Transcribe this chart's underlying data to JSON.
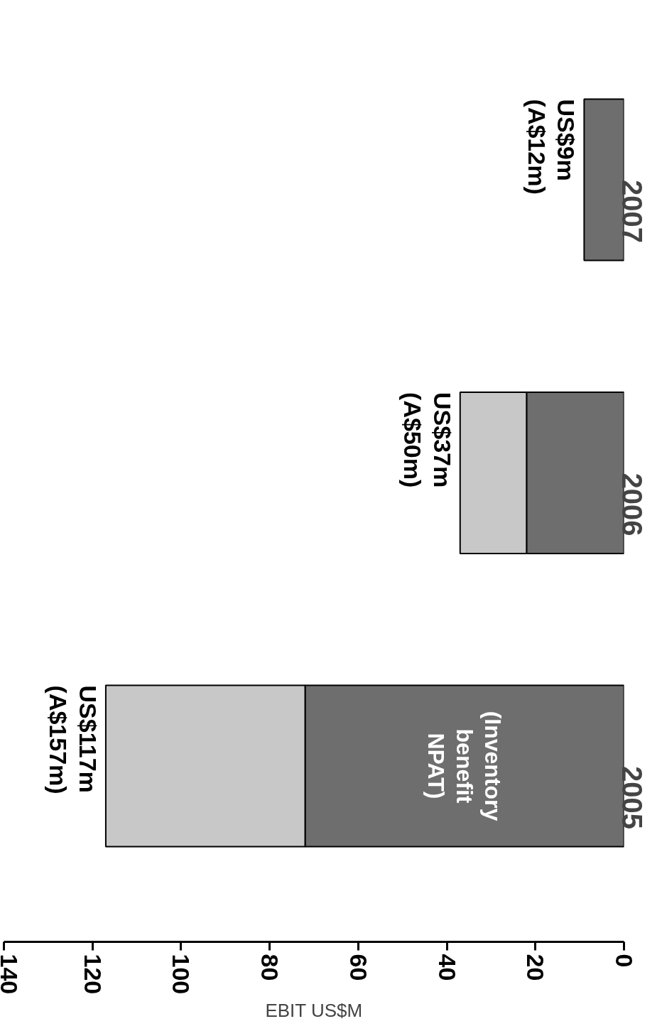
{
  "chart_data": {
    "type": "bar",
    "orientation": "horizontal",
    "stacked": true,
    "xlabel": "EBIT US$M",
    "categories": [
      "2007",
      "2006",
      "2005"
    ],
    "series": [
      {
        "color": "#6e6e6e",
        "values": [
          9,
          22,
          72
        ]
      },
      {
        "color": "#c8c8c8",
        "values": [
          null,
          15,
          45
        ]
      }
    ],
    "xlim": [
      140,
      0
    ],
    "xticks": [
      0,
      20,
      40,
      60,
      80,
      100,
      120,
      140
    ],
    "totals": [
      "US$9m\n(A$12m)",
      "US$37m\n(A$50m)",
      "US$117m\n(A$157m)"
    ],
    "annotations": [
      "(Inventory\nbenefit\nNPAT)"
    ],
    "grid": false
  }
}
